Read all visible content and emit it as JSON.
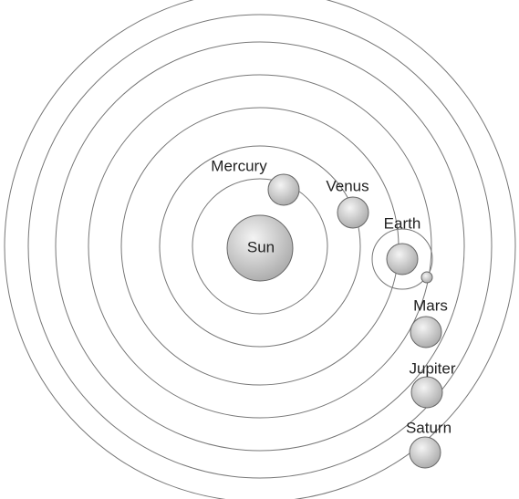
{
  "bodies": {
    "sun": "Sun",
    "mercury": "Mercury",
    "venus": "Venus",
    "earth": "Earth",
    "mars": "Mars",
    "jupiter": "Jupiter",
    "saturn": "Saturn"
  }
}
